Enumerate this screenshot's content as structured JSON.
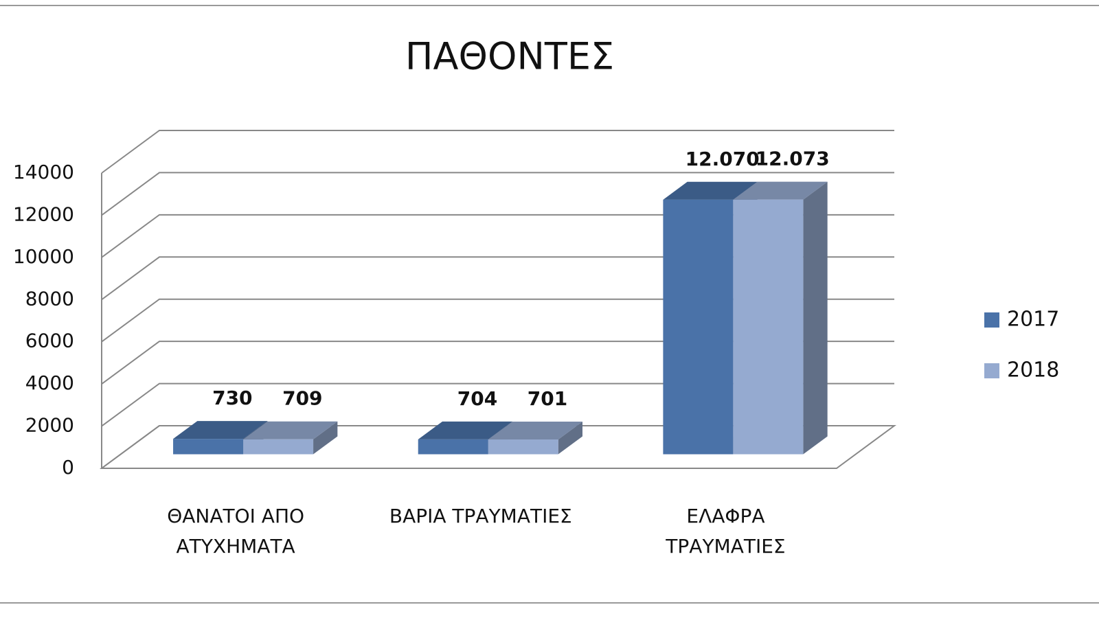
{
  "chart_data": {
    "type": "bar3d",
    "title": "ΠΑΘΟΝΤΕΣ",
    "categories": [
      "ΘΑΝΑΤΟΙ ΑΠΟ ΑΤΥΧΗΜΑΤΑ",
      "ΒΑΡΙΑ ΤΡΑΥΜΑΤΙΕΣ",
      "ΕΛΑΦΡΑ ΤΡΑΥΜΑΤΙΕΣ"
    ],
    "series": [
      {
        "name": "2017",
        "color": "#4a72a8",
        "values": [
          730,
          704,
          12070
        ],
        "value_labels": [
          "730",
          "704",
          "12.070"
        ]
      },
      {
        "name": "2018",
        "color": "#95aad0",
        "values": [
          709,
          701,
          12073
        ],
        "value_labels": [
          "709",
          "701",
          "12.073"
        ]
      }
    ],
    "ylim": [
      0,
      14000
    ],
    "yticks": [
      0,
      2000,
      4000,
      6000,
      8000,
      10000,
      12000,
      14000
    ],
    "grid": true,
    "legend": "right"
  }
}
